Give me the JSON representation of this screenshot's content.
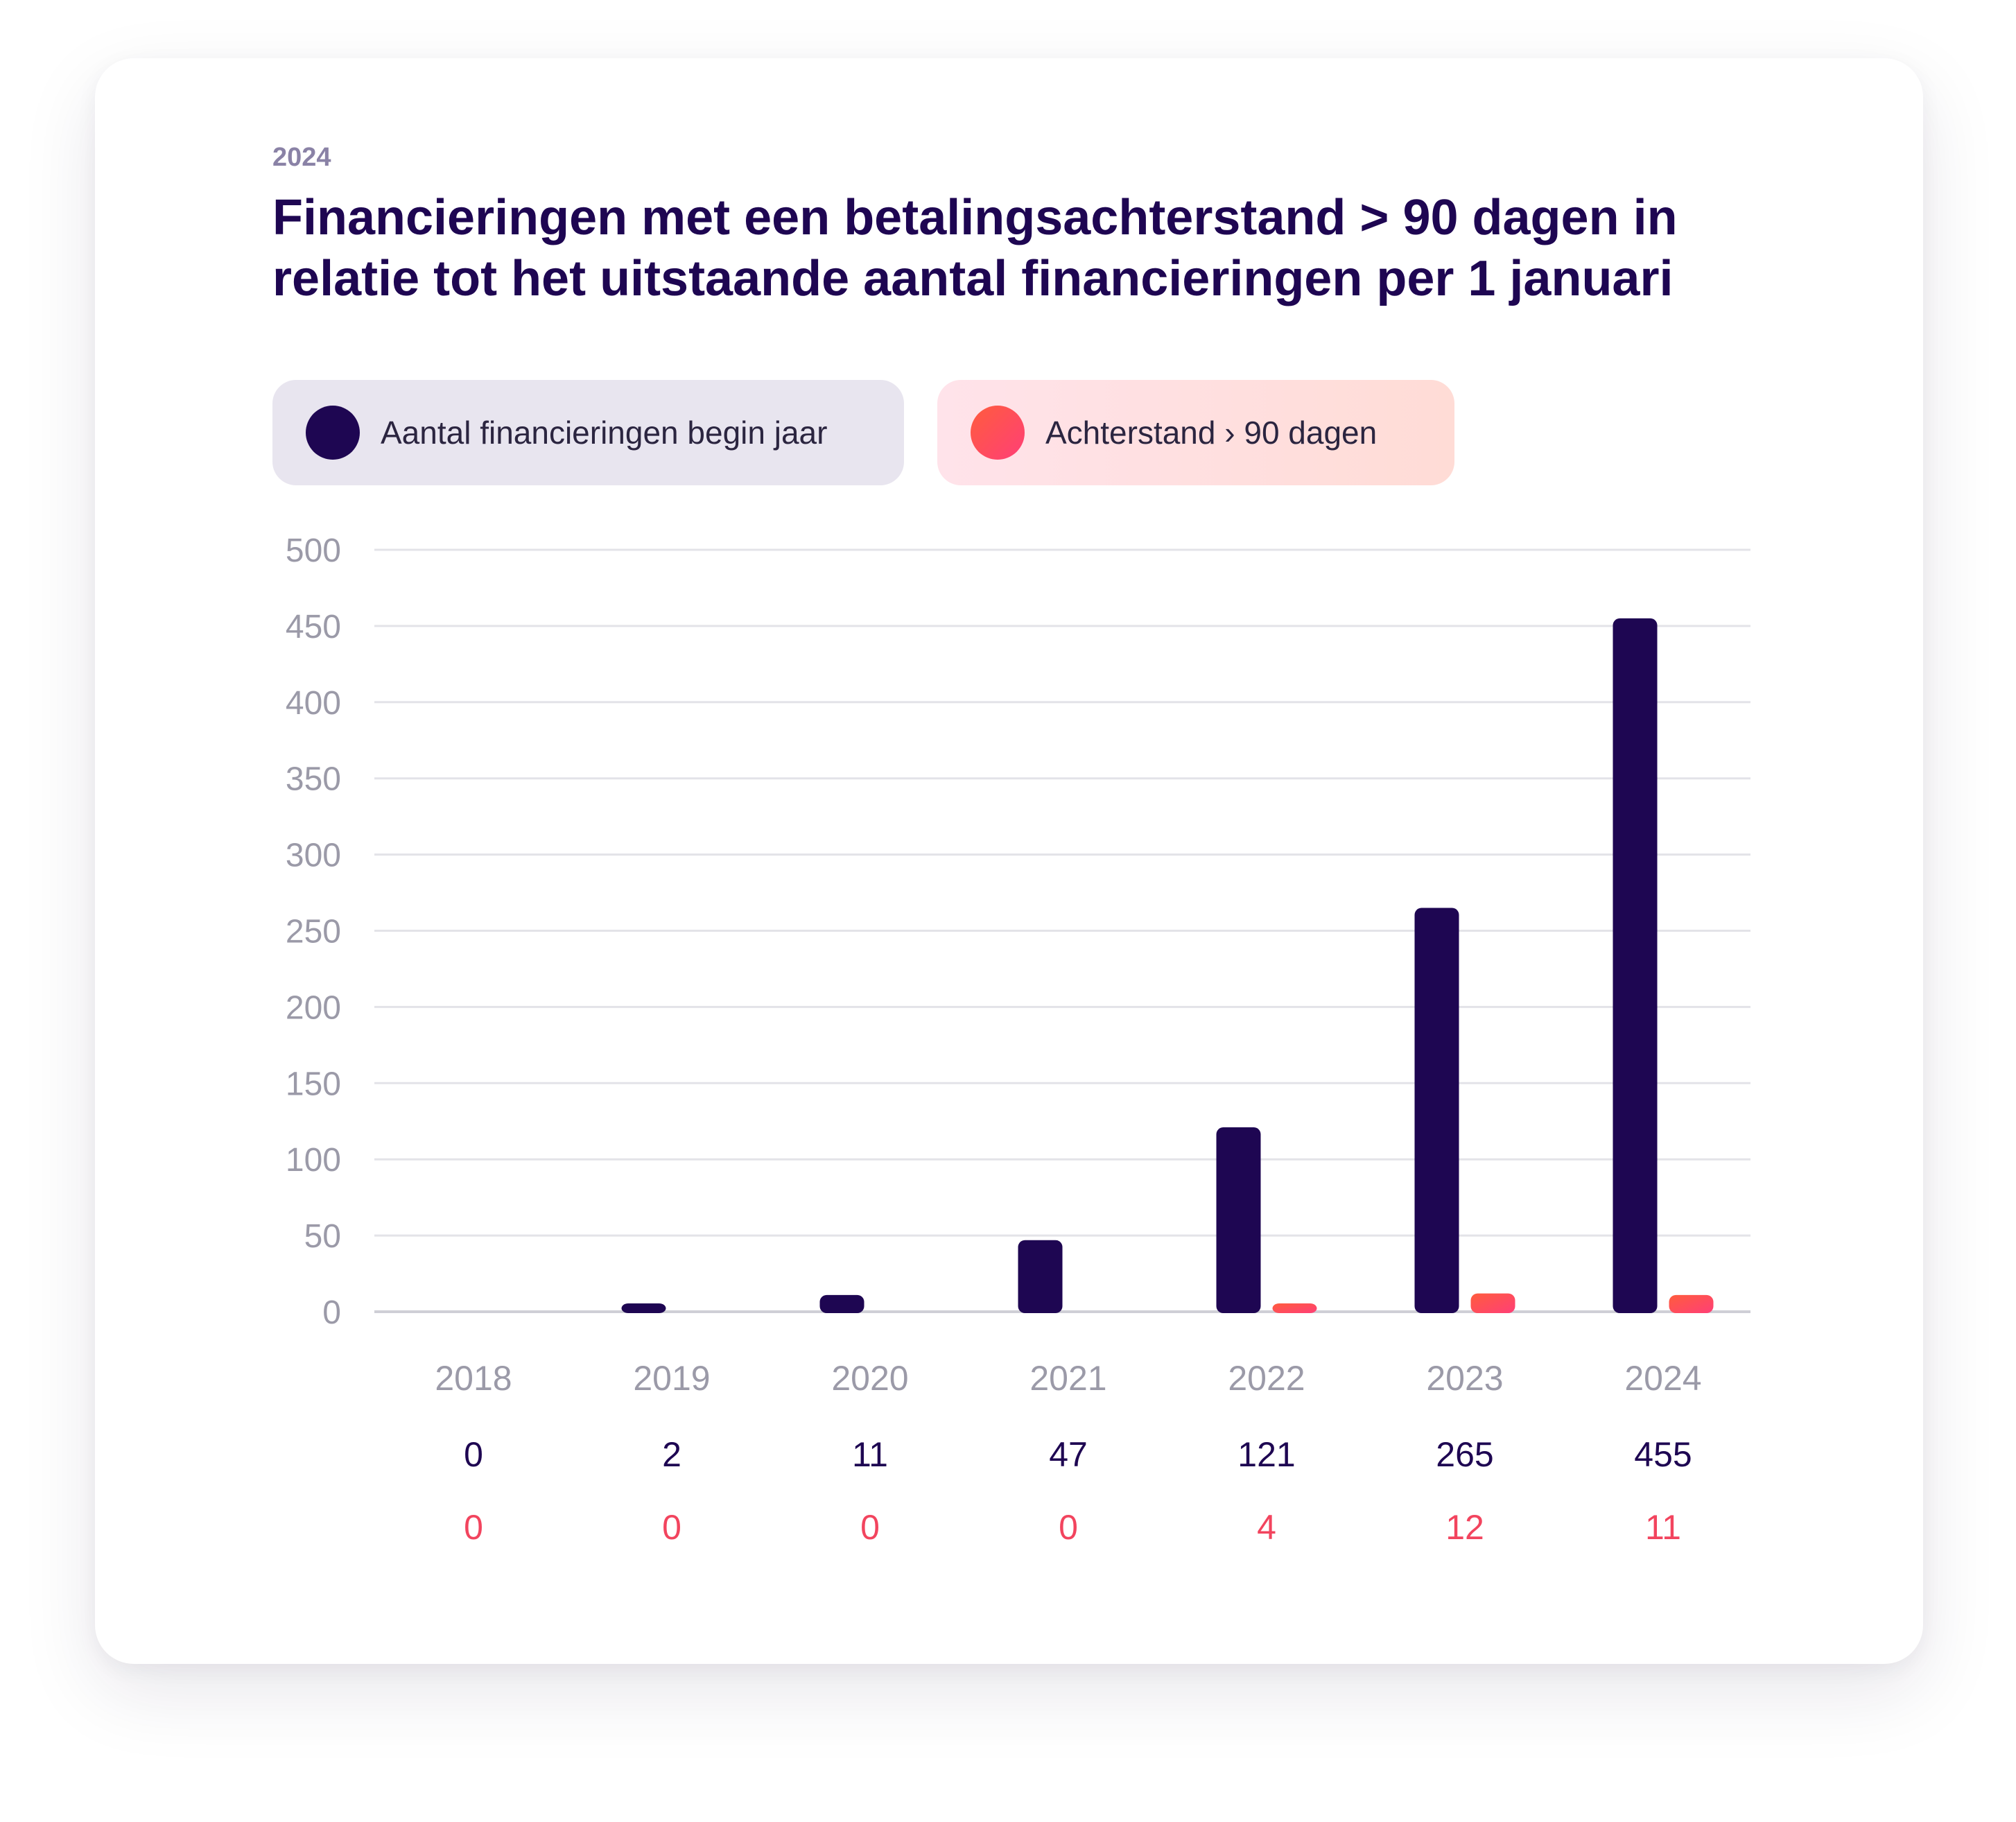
{
  "eyebrow": "2024",
  "title_lines": [
    "Financieringen met een betalingsachterstand > 90 dagen in",
    "relatie tot het uitstaande aantal financieringen per 1 januari"
  ],
  "legend": [
    {
      "label": "Aantal financieringen begin jaar",
      "color": "#1e0652"
    },
    {
      "label": "Achterstand › 90 dagen",
      "color": "#ff4a5e"
    }
  ],
  "chart_data": {
    "type": "bar",
    "title": "Financieringen met een betalingsachterstand > 90 dagen in relatie tot het uitstaande aantal financieringen per 1 januari",
    "categories": [
      "2018",
      "2019",
      "2020",
      "2021",
      "2022",
      "2023",
      "2024"
    ],
    "series": [
      {
        "name": "Aantal financieringen begin jaar",
        "values": [
          0,
          2,
          11,
          47,
          121,
          265,
          455
        ],
        "color": "#1e0652"
      },
      {
        "name": "Achterstand › 90 dagen",
        "values": [
          0,
          0,
          0,
          0,
          4,
          12,
          11
        ],
        "color": "#ff4a5e"
      }
    ],
    "value_labels": {
      "count": [
        "0",
        "2",
        "11",
        "47",
        "121",
        "265",
        "455"
      ],
      "arrears": [
        "0",
        "0",
        "0",
        "0",
        "4",
        "12",
        "11"
      ]
    },
    "yticks": [
      "0",
      "50",
      "100",
      "150",
      "200",
      "250",
      "300",
      "350",
      "400",
      "450",
      "500"
    ],
    "ylim": [
      0,
      500
    ],
    "grid": true,
    "legend_position": "top-left"
  }
}
